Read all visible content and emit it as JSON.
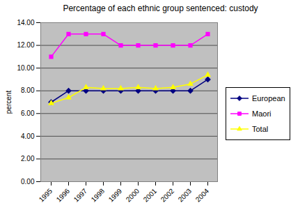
{
  "chart_data": {
    "type": "line",
    "title": "Percentage of each ethnic group sentenced: custody",
    "y_label": "percent",
    "categories": [
      "1995",
      "1996",
      "1997",
      "1998",
      "1999",
      "2000",
      "2001",
      "2002",
      "2003",
      "2004"
    ],
    "series": [
      {
        "name": "European",
        "color": "#000080",
        "marker": "diamond",
        "values": [
          7,
          8,
          8,
          8,
          8,
          8,
          8,
          8,
          8,
          9
        ]
      },
      {
        "name": "Maori",
        "color": "#ff00ff",
        "marker": "square",
        "values": [
          11,
          13,
          13,
          13,
          12,
          12,
          12,
          12,
          12,
          13
        ]
      },
      {
        "name": "Total",
        "color": "#ffff00",
        "marker": "triangle",
        "values": [
          6.9,
          7.4,
          8.3,
          8.2,
          8.2,
          8.3,
          8.2,
          8.3,
          8.6,
          9.4
        ]
      }
    ],
    "ylim": [
      0,
      14
    ],
    "yticks": [
      {
        "value": 0,
        "label": "0.00"
      },
      {
        "value": 2,
        "label": "2.00"
      },
      {
        "value": 4,
        "label": "4.00"
      },
      {
        "value": 6,
        "label": "6.00"
      },
      {
        "value": 8,
        "label": "8.00"
      },
      {
        "value": 10,
        "label": "10.00"
      },
      {
        "value": 12,
        "label": "12.00"
      },
      {
        "value": 14,
        "label": "14.00"
      }
    ],
    "grid": true,
    "legend": "right"
  }
}
